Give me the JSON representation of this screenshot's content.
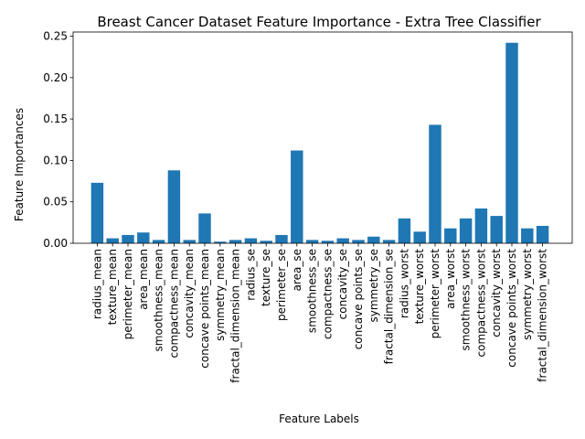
{
  "chart_data": {
    "type": "bar",
    "title": "Breast Cancer Dataset Feature Importance - Extra Tree Classifier",
    "xlabel": "Feature Labels",
    "ylabel": "Feature Importances",
    "ylim": [
      0,
      0.255
    ],
    "yticks": [
      "0.00",
      "0.05",
      "0.10",
      "0.15",
      "0.20",
      "0.25"
    ],
    "grid": false,
    "bar_color": "#1f77b4",
    "categories": [
      "radius_mean",
      "texture_mean",
      "perimeter_mean",
      "area_mean",
      "smoothness_mean",
      "compactness_mean",
      "concavity_mean",
      "concave points_mean",
      "symmetry_mean",
      "fractal_dimension_mean",
      "radius_se",
      "texture_se",
      "perimeter_se",
      "area_se",
      "smoothness_se",
      "compactness_se",
      "concavity_se",
      "concave points_se",
      "symmetry_se",
      "fractal_dimension_se",
      "radius_worst",
      "texture_worst",
      "perimeter_worst",
      "area_worst",
      "smoothness_worst",
      "compactness_worst",
      "concavity_worst",
      "concave points_worst",
      "symmetry_worst",
      "fractal_dimension_worst"
    ],
    "values": [
      0.073,
      0.006,
      0.01,
      0.013,
      0.004,
      0.088,
      0.004,
      0.036,
      0.002,
      0.004,
      0.006,
      0.003,
      0.01,
      0.112,
      0.004,
      0.003,
      0.006,
      0.004,
      0.008,
      0.004,
      0.03,
      0.014,
      0.143,
      0.018,
      0.03,
      0.042,
      0.033,
      0.242,
      0.018,
      0.021
    ]
  }
}
